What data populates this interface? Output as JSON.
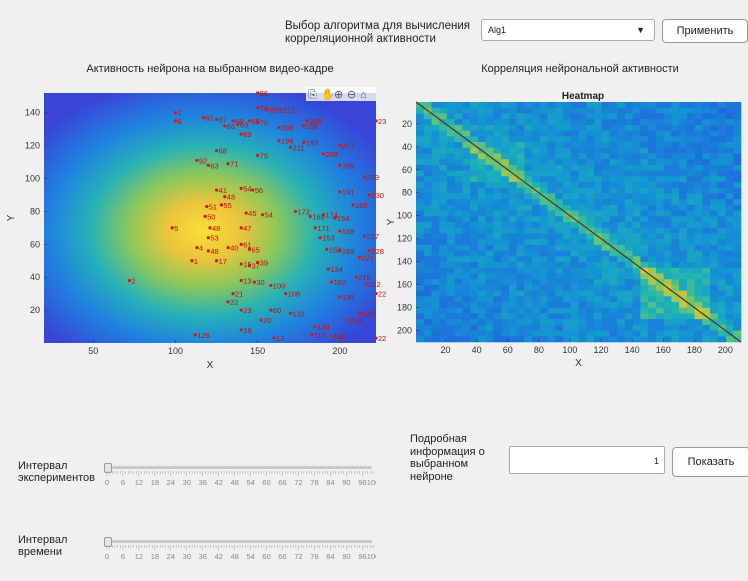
{
  "header": {
    "algorithm_label": "Выбор алгоритма для вычисления корреляционной активности",
    "algorithm_selected": "Alg1",
    "apply_label": "Применить"
  },
  "left_panel": {
    "title": "Активность нейрона на выбранном видео-кадре",
    "toolbar_icons": [
      "export-icon",
      "pan-hand-icon",
      "zoom-in-icon",
      "zoom-out-icon",
      "home-icon"
    ]
  },
  "right_panel": {
    "title": "Корреляция нейрональной активности"
  },
  "chart_data": [
    {
      "type": "scatter",
      "title": "",
      "xlabel": "X",
      "ylabel": "Y",
      "xlim": [
        20,
        222
      ],
      "ylim": [
        0,
        152
      ],
      "xticks": [
        50,
        100,
        150,
        200
      ],
      "yticks": [
        20,
        40,
        60,
        80,
        100,
        120,
        140
      ],
      "background": "activity heat map (yellow center fading to blue edges)",
      "points": [
        {
          "label": "7",
          "x": 100,
          "y": 140
        },
        {
          "label": "6",
          "x": 100,
          "y": 135
        },
        {
          "label": "61",
          "x": 117,
          "y": 137
        },
        {
          "label": "67",
          "x": 125,
          "y": 136
        },
        {
          "label": "66",
          "x": 130,
          "y": 132
        },
        {
          "label": "68",
          "x": 135,
          "y": 135
        },
        {
          "label": "63",
          "x": 138,
          "y": 133
        },
        {
          "label": "55",
          "x": 145,
          "y": 135
        },
        {
          "label": "70",
          "x": 150,
          "y": 134
        },
        {
          "label": "76",
          "x": 150,
          "y": 143
        },
        {
          "label": "202",
          "x": 156,
          "y": 142
        },
        {
          "label": "212",
          "x": 164,
          "y": 142
        },
        {
          "label": "206",
          "x": 180,
          "y": 135
        },
        {
          "label": "208",
          "x": 163,
          "y": 131
        },
        {
          "label": "198",
          "x": 178,
          "y": 132
        },
        {
          "label": "69",
          "x": 140,
          "y": 127
        },
        {
          "label": "196",
          "x": 163,
          "y": 123
        },
        {
          "label": "211",
          "x": 170,
          "y": 119
        },
        {
          "label": "193",
          "x": 178,
          "y": 122
        },
        {
          "label": "207",
          "x": 200,
          "y": 120
        },
        {
          "label": "68",
          "x": 125,
          "y": 117
        },
        {
          "label": "92",
          "x": 113,
          "y": 111
        },
        {
          "label": "63",
          "x": 120,
          "y": 108
        },
        {
          "label": "71",
          "x": 132,
          "y": 109
        },
        {
          "label": "75",
          "x": 150,
          "y": 114
        },
        {
          "label": "209",
          "x": 190,
          "y": 115
        },
        {
          "label": "199",
          "x": 200,
          "y": 108
        },
        {
          "label": "229",
          "x": 215,
          "y": 101
        },
        {
          "label": "230",
          "x": 218,
          "y": 90
        },
        {
          "label": "191",
          "x": 200,
          "y": 92
        },
        {
          "label": "185",
          "x": 208,
          "y": 84
        },
        {
          "label": "54",
          "x": 140,
          "y": 94
        },
        {
          "label": "56",
          "x": 147,
          "y": 93
        },
        {
          "label": "41",
          "x": 125,
          "y": 93
        },
        {
          "label": "48",
          "x": 130,
          "y": 89
        },
        {
          "label": "55",
          "x": 128,
          "y": 84
        },
        {
          "label": "51",
          "x": 119,
          "y": 83
        },
        {
          "label": "50",
          "x": 118,
          "y": 77
        },
        {
          "label": "48",
          "x": 121,
          "y": 70
        },
        {
          "label": "53",
          "x": 120,
          "y": 64
        },
        {
          "label": "48",
          "x": 120,
          "y": 56
        },
        {
          "label": "47",
          "x": 140,
          "y": 70
        },
        {
          "label": "45",
          "x": 143,
          "y": 79
        },
        {
          "label": "54",
          "x": 153,
          "y": 78
        },
        {
          "label": "172",
          "x": 173,
          "y": 80
        },
        {
          "label": "168",
          "x": 182,
          "y": 77
        },
        {
          "label": "174",
          "x": 190,
          "y": 78
        },
        {
          "label": "154",
          "x": 197,
          "y": 76
        },
        {
          "label": "171",
          "x": 185,
          "y": 70
        },
        {
          "label": "189",
          "x": 200,
          "y": 68
        },
        {
          "label": "227",
          "x": 215,
          "y": 65
        },
        {
          "label": "228",
          "x": 218,
          "y": 56
        },
        {
          "label": "221",
          "x": 212,
          "y": 52
        },
        {
          "label": "183",
          "x": 200,
          "y": 56
        },
        {
          "label": "158",
          "x": 192,
          "y": 57
        },
        {
          "label": "153",
          "x": 188,
          "y": 64
        },
        {
          "label": "61",
          "x": 140,
          "y": 60
        },
        {
          "label": "65",
          "x": 145,
          "y": 57
        },
        {
          "label": "40",
          "x": 132,
          "y": 58
        },
        {
          "label": "5",
          "x": 98,
          "y": 70
        },
        {
          "label": "4",
          "x": 113,
          "y": 58
        },
        {
          "label": "1",
          "x": 110,
          "y": 50
        },
        {
          "label": "17",
          "x": 125,
          "y": 50
        },
        {
          "label": "15",
          "x": 140,
          "y": 48
        },
        {
          "label": "37",
          "x": 145,
          "y": 47
        },
        {
          "label": "39",
          "x": 150,
          "y": 49
        },
        {
          "label": "134",
          "x": 193,
          "y": 45
        },
        {
          "label": "219",
          "x": 210,
          "y": 40
        },
        {
          "label": "222",
          "x": 216,
          "y": 36
        },
        {
          "label": "182",
          "x": 195,
          "y": 37
        },
        {
          "label": "2",
          "x": 72,
          "y": 38
        },
        {
          "label": "13",
          "x": 140,
          "y": 38
        },
        {
          "label": "21",
          "x": 135,
          "y": 30
        },
        {
          "label": "22",
          "x": 132,
          "y": 25
        },
        {
          "label": "23",
          "x": 140,
          "y": 20
        },
        {
          "label": "30",
          "x": 148,
          "y": 37
        },
        {
          "label": "100",
          "x": 158,
          "y": 35
        },
        {
          "label": "108",
          "x": 167,
          "y": 30
        },
        {
          "label": "139",
          "x": 200,
          "y": 28
        },
        {
          "label": "220",
          "x": 212,
          "y": 18
        },
        {
          "label": "218",
          "x": 205,
          "y": 14
        },
        {
          "label": "60",
          "x": 158,
          "y": 20
        },
        {
          "label": "131",
          "x": 170,
          "y": 18
        },
        {
          "label": "20",
          "x": 152,
          "y": 14
        },
        {
          "label": "19",
          "x": 140,
          "y": 8
        },
        {
          "label": "12",
          "x": 160,
          "y": 3
        },
        {
          "label": "134",
          "x": 185,
          "y": 10
        },
        {
          "label": "117",
          "x": 183,
          "y": 5
        },
        {
          "label": "140",
          "x": 195,
          "y": 4
        },
        {
          "label": "125",
          "x": 112,
          "y": 5
        },
        {
          "label": "22",
          "x": 222,
          "y": 30
        },
        {
          "label": "23",
          "x": 222,
          "y": 135
        },
        {
          "label": "22",
          "x": 222,
          "y": 3
        },
        {
          "label": "96",
          "x": 150,
          "y": 152
        }
      ]
    },
    {
      "type": "heatmap",
      "title": "Heatmap",
      "xlabel": "X",
      "ylabel": "Y",
      "xlim": [
        1,
        210
      ],
      "ylim": [
        1,
        210
      ],
      "xticks": [
        20,
        40,
        60,
        80,
        100,
        120,
        140,
        160,
        180,
        200
      ],
      "yticks": [
        20,
        40,
        60,
        80,
        100,
        120,
        140,
        160,
        180,
        200
      ],
      "colormap": "parula",
      "description": "210×210 correlation matrix with bright diagonal"
    }
  ],
  "sliders": [
    {
      "label": "Интервал экспериментов",
      "value": 0,
      "ticks": [
        "0",
        "6",
        "12",
        "18",
        "24",
        "30",
        "36",
        "42",
        "48",
        "54",
        "60",
        "66",
        "72",
        "78",
        "84",
        "90",
        "96",
        "100"
      ]
    },
    {
      "label": "Интервал времени",
      "value": 0,
      "ticks": [
        "0",
        "6",
        "12",
        "18",
        "24",
        "30",
        "36",
        "42",
        "48",
        "54",
        "60",
        "66",
        "72",
        "78",
        "84",
        "90",
        "96",
        "100"
      ]
    }
  ],
  "neuron_info": {
    "label": "Подробная информация о выбранном нейроне",
    "value": "1",
    "show_label": "Показать"
  }
}
